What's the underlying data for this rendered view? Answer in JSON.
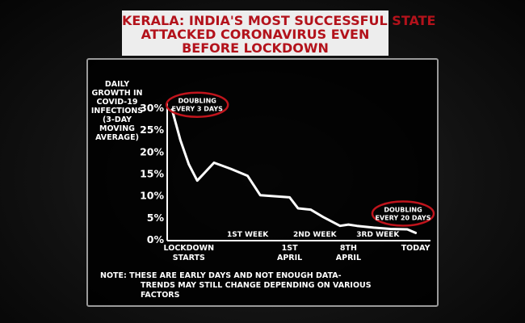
{
  "header": {
    "title_lines": [
      "KERALA: INDIA'S MOST SUCCESSFUL STATE",
      "ATTACKED CORONAVIRUS EVEN",
      "BEFORE LOCKDOWN"
    ]
  },
  "chart_data": {
    "type": "line",
    "ylabel_lines": [
      "DAILY",
      "GROWTH IN",
      "COVID-19",
      "INFECTIONS",
      "(3-DAY",
      "MOVING",
      "AVERAGE)"
    ],
    "y_ticks": [
      "0%",
      "5%",
      "10%",
      "15%",
      "20%",
      "25%",
      "30%"
    ],
    "ylim": [
      0,
      30
    ],
    "x_labels": [
      {
        "lines": [
          "LOCKDOWN",
          "STARTS"
        ],
        "x": 2
      },
      {
        "lines": [
          "1ST WEEK"
        ],
        "x": 9,
        "row": "upper"
      },
      {
        "lines": [
          "1ST",
          "APRIL"
        ],
        "x": 14
      },
      {
        "lines": [
          "2ND WEEK"
        ],
        "x": 17,
        "row": "upper"
      },
      {
        "lines": [
          "8TH",
          "APRIL"
        ],
        "x": 21
      },
      {
        "lines": [
          "3RD WEEK"
        ],
        "x": 24.5,
        "row": "upper"
      },
      {
        "lines": [
          "TODAY"
        ],
        "x": 29
      }
    ],
    "xlim": [
      0,
      30
    ],
    "series": [
      {
        "color": "#ffffff",
        "points": [
          [
            0,
            29.5
          ],
          [
            1,
            22.5
          ],
          [
            2,
            17.0
          ],
          [
            3,
            13.3
          ],
          [
            5,
            17.4
          ],
          [
            7,
            16.0
          ],
          [
            9,
            14.4
          ],
          [
            10.5,
            10.0
          ],
          [
            14,
            9.5
          ],
          [
            15,
            7.0
          ],
          [
            16.5,
            6.7
          ],
          [
            18,
            5.0
          ],
          [
            20,
            3.0
          ],
          [
            21,
            3.3
          ],
          [
            22,
            3.0
          ],
          [
            24,
            2.6
          ],
          [
            26,
            2.3
          ],
          [
            28,
            2.2
          ],
          [
            29,
            1.4
          ]
        ]
      }
    ],
    "annotations": [
      {
        "lines": [
          "DOUBLING",
          "EVERY 3 DAYS"
        ],
        "x": 3,
        "y": 30.6,
        "color": "#c0141c"
      },
      {
        "lines": [
          "DOUBLING",
          "EVERY 20 DAYS"
        ],
        "x": 27.5,
        "y": 5.8,
        "color": "#c0141c"
      }
    ],
    "grid": false,
    "legend": "none"
  },
  "footer": {
    "note_lines": [
      "NOTE: THESE ARE EARLY DAYS AND NOT ENOUGH DATA-",
      "TRENDS MAY STILL CHANGE DEPENDING ON VARIOUS FACTORS"
    ]
  }
}
